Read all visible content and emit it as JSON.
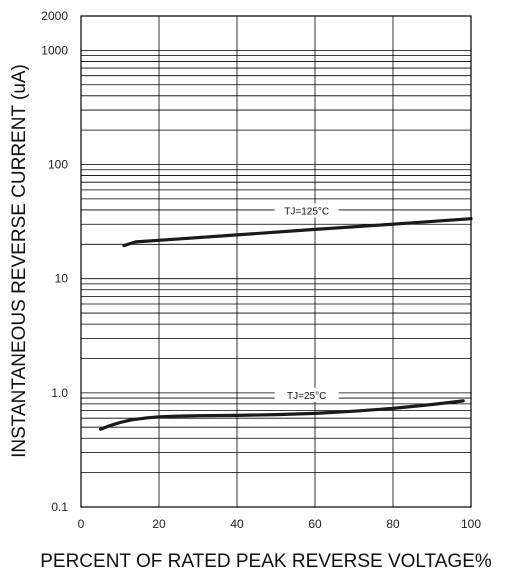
{
  "chart_data": {
    "type": "line",
    "title": "",
    "xlabel": "PERCENT OF RATED PEAK REVERSE VOLTAGE%",
    "ylabel": "INSTANTANEOUS REVERSE CURRENT (uA)",
    "xlim": [
      0,
      100
    ],
    "ylim": [
      0.1,
      2000
    ],
    "yscale": "log",
    "grid": true,
    "x_ticks": [
      0,
      20,
      40,
      60,
      80,
      100
    ],
    "x_tick_labels": [
      "0",
      "20",
      "40",
      "60",
      "80",
      "100"
    ],
    "y_ticks": [
      0.1,
      1.0,
      10,
      100,
      1000,
      2000
    ],
    "y_tick_labels": [
      "0.1",
      "1.0",
      "10",
      "100",
      "1000",
      "2000"
    ],
    "series": [
      {
        "name": "TJ=125°C",
        "x": [
          11,
          14,
          20,
          40,
          60,
          80,
          100
        ],
        "y": [
          19.5,
          21,
          21.7,
          24.2,
          27,
          30,
          33.5
        ]
      },
      {
        "name": "TJ=25°C",
        "x": [
          5,
          7,
          10,
          13,
          17,
          20,
          25,
          30,
          40,
          50,
          60,
          70,
          80,
          90,
          98
        ],
        "y": [
          0.48,
          0.51,
          0.55,
          0.58,
          0.605,
          0.615,
          0.625,
          0.63,
          0.635,
          0.645,
          0.66,
          0.69,
          0.73,
          0.79,
          0.85
        ]
      }
    ],
    "colors": {
      "line": "#1a1a1a",
      "grid": "#000000",
      "background": "#ffffff"
    }
  }
}
